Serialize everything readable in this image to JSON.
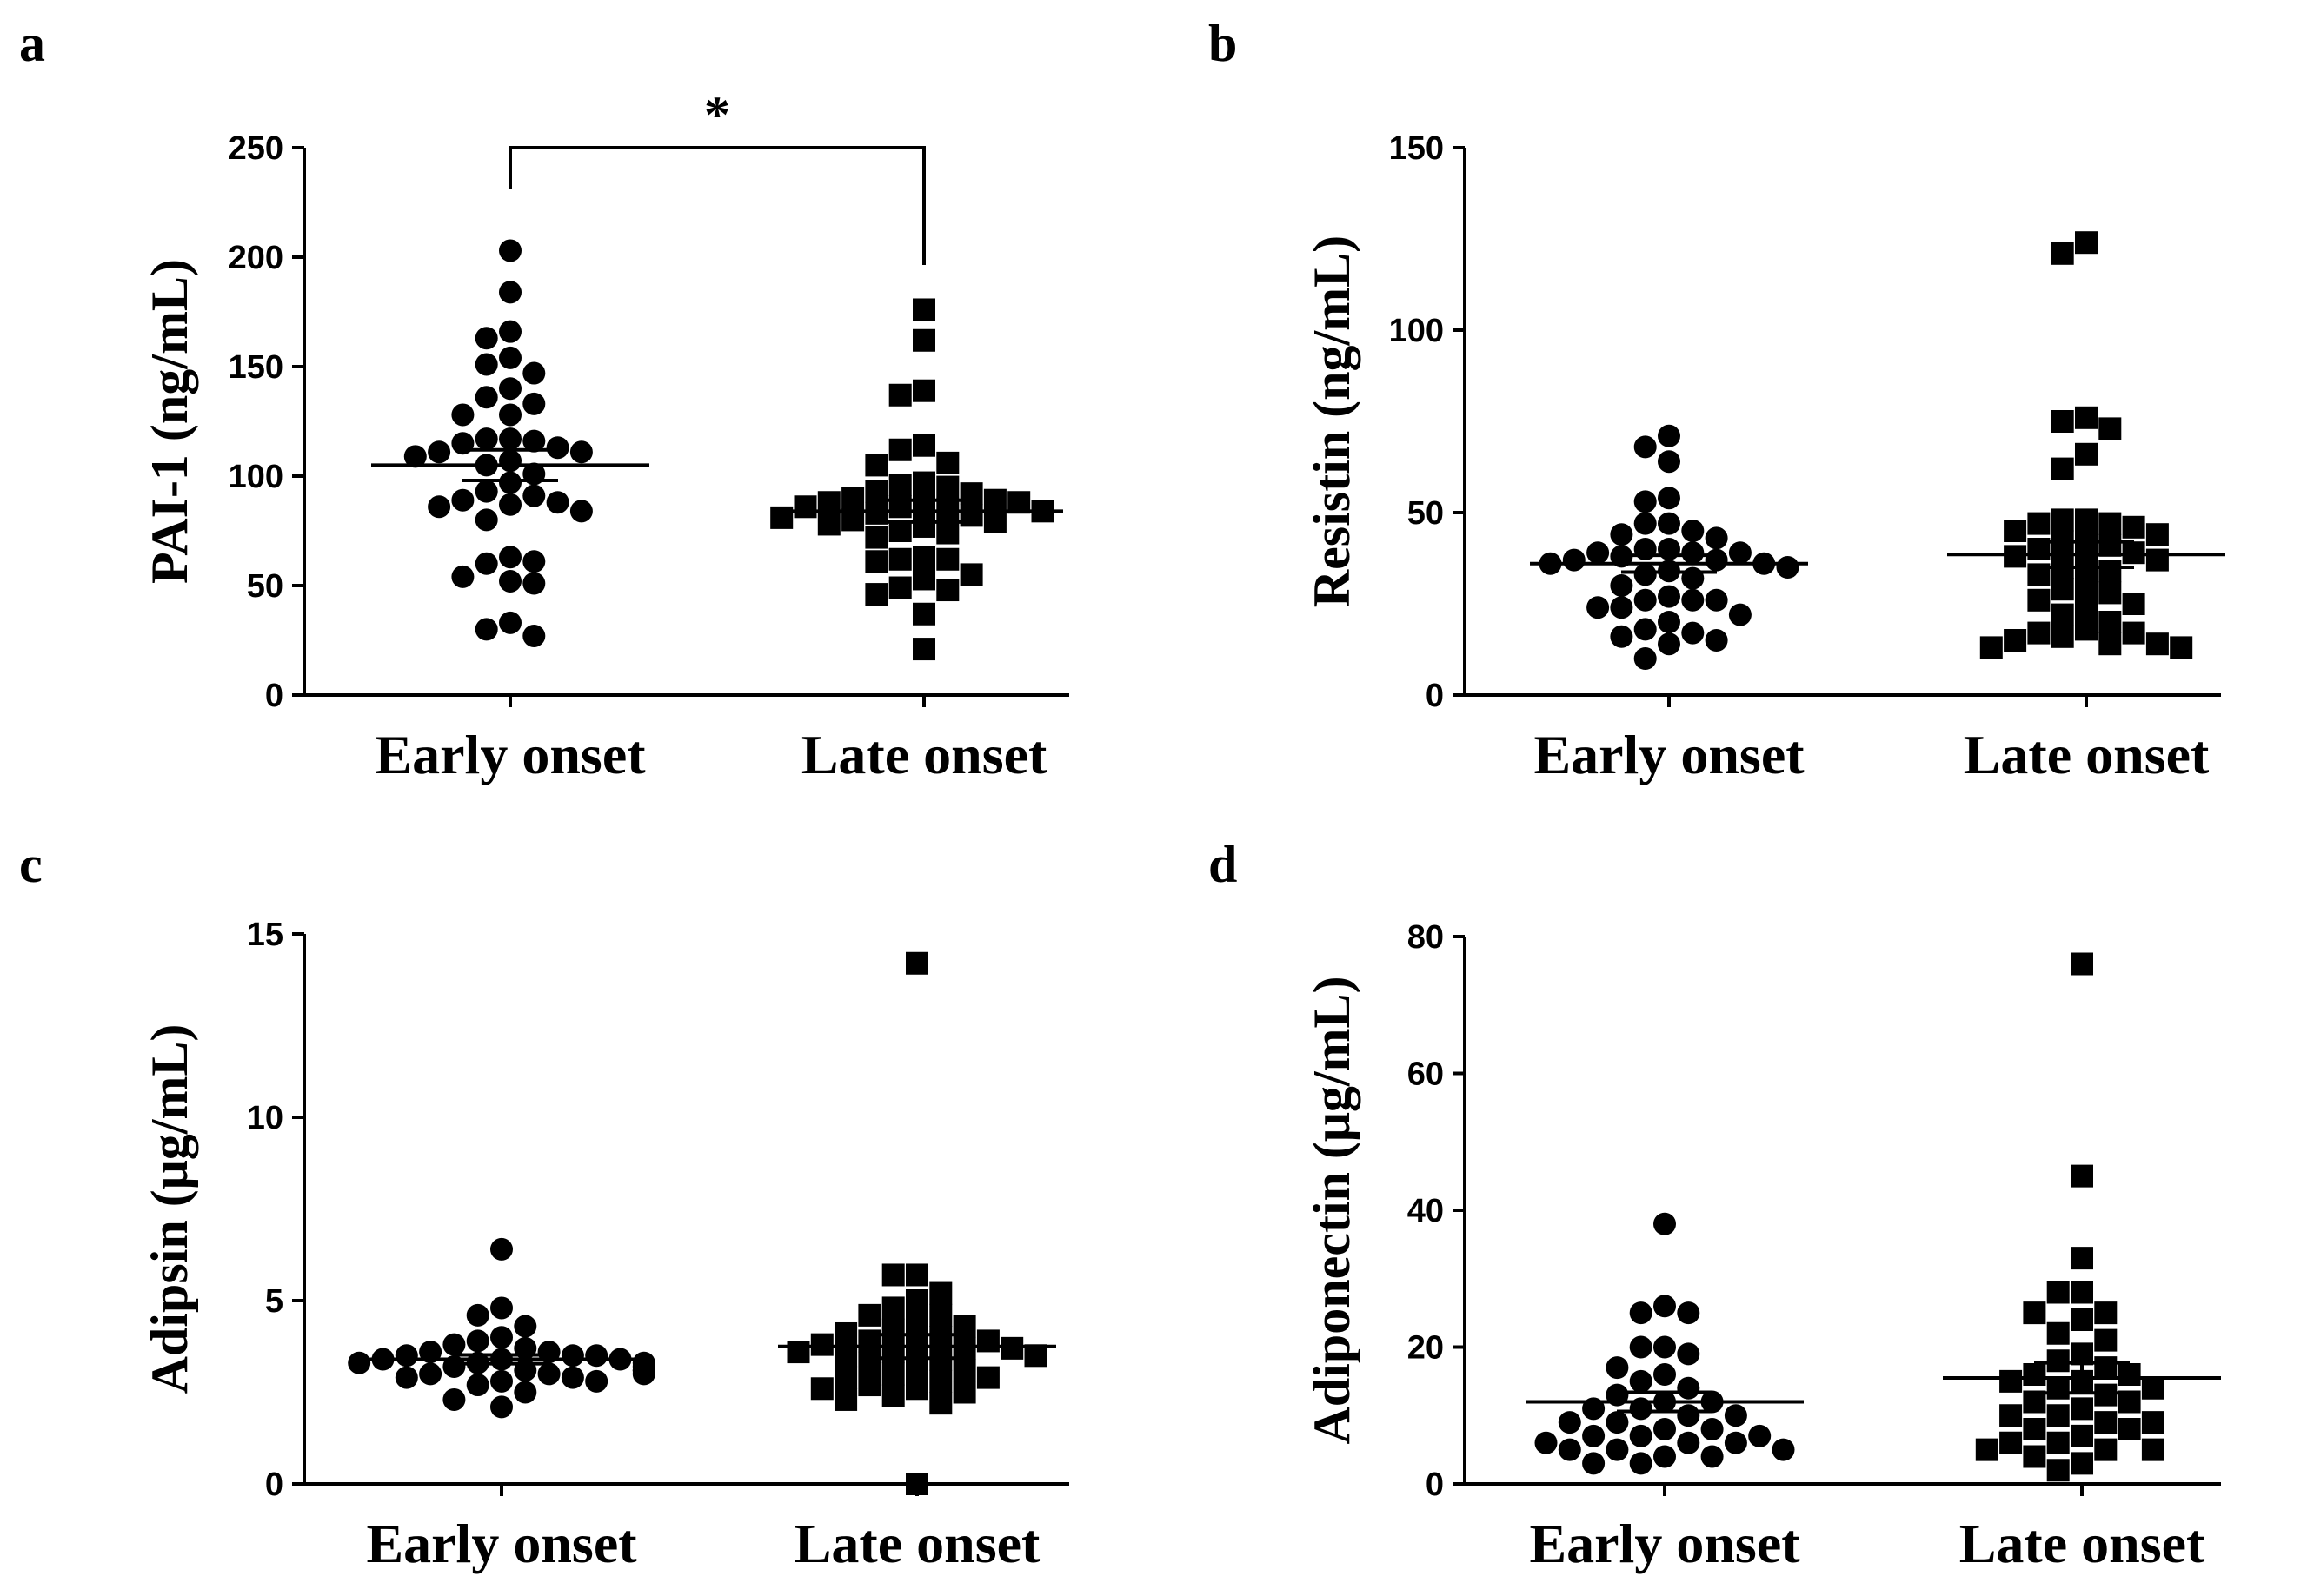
{
  "chart_data": [
    {
      "panel": "a",
      "type": "scatter",
      "ylabel": "PAI-1 (ng/mL)",
      "ylim": [
        0,
        250
      ],
      "yticks": [
        0,
        50,
        100,
        150,
        200,
        250
      ],
      "categories": [
        "Early onset",
        "Late onset"
      ],
      "significance": {
        "label": "*",
        "between": [
          0,
          1
        ]
      },
      "series": [
        {
          "category": "Early onset",
          "marker": "circle",
          "mean": 105,
          "sem": 7,
          "values": [
            203,
            184,
            166,
            163,
            154,
            151,
            147,
            140,
            136,
            133,
            128,
            128,
            117,
            117,
            116,
            115,
            113,
            111,
            111,
            109,
            107,
            105,
            101,
            97,
            93,
            91,
            89,
            88,
            87,
            86,
            84,
            80,
            63,
            60,
            61,
            54,
            52,
            51,
            33,
            30,
            27
          ]
        },
        {
          "category": "Late onset",
          "marker": "square",
          "mean": 84,
          "sem": 5,
          "values": [
            176,
            162,
            139,
            137,
            114,
            112,
            106,
            105,
            97,
            96,
            95,
            93,
            92,
            90,
            89,
            88,
            88,
            87,
            86,
            86,
            85,
            84,
            83,
            82,
            81,
            80,
            79,
            78,
            77,
            75,
            74,
            72,
            63,
            62,
            62,
            61,
            55,
            53,
            49,
            48,
            46,
            37,
            21
          ]
        }
      ]
    },
    {
      "panel": "b",
      "type": "scatter",
      "ylabel": "Resistin (ng/mL)",
      "ylim": [
        0,
        150
      ],
      "yticks": [
        0,
        50,
        100,
        150
      ],
      "categories": [
        "Early onset",
        "Late onset"
      ],
      "series": [
        {
          "category": "Early onset",
          "marker": "circle",
          "mean": 36,
          "sem": 2.3,
          "values": [
            71,
            68,
            64,
            54,
            53,
            47,
            47,
            45,
            44,
            43,
            40,
            40,
            39,
            39,
            39,
            38,
            37,
            37,
            36,
            36,
            35,
            34,
            33,
            32,
            30,
            27,
            26,
            26,
            26,
            24,
            24,
            22,
            20,
            18,
            17,
            16,
            15,
            14,
            10
          ]
        },
        {
          "category": "Late onset",
          "marker": "square",
          "mean": 38.5,
          "sem": 3.5,
          "values": [
            124,
            121,
            76,
            75,
            73,
            66,
            62,
            48,
            48,
            47,
            47,
            46,
            45,
            44,
            42,
            42,
            41,
            40,
            39,
            38,
            37,
            36,
            35,
            34,
            33,
            30,
            29,
            28,
            26,
            25,
            24,
            22,
            20,
            18,
            17,
            17,
            16,
            15,
            14,
            14,
            13,
            13
          ]
        }
      ]
    },
    {
      "panel": "c",
      "type": "scatter",
      "ylabel": "Adipsin (μg/mL)",
      "ylim": [
        0,
        15
      ],
      "yticks": [
        0,
        5,
        10,
        15
      ],
      "categories": [
        "Early onset",
        "Late onset"
      ],
      "series": [
        {
          "category": "Early onset",
          "marker": "circle",
          "mean": 3.4,
          "sem": 0.12,
          "values": [
            6.4,
            4.8,
            4.6,
            4.3,
            4.0,
            3.9,
            3.8,
            3.7,
            3.6,
            3.6,
            3.5,
            3.5,
            3.5,
            3.4,
            3.4,
            3.4,
            3.3,
            3.3,
            3.3,
            3.2,
            3.2,
            3.1,
            3.1,
            3.1,
            3.0,
            3.0,
            3.0,
            2.9,
            2.9,
            2.8,
            2.8,
            2.7,
            2.5,
            2.3,
            2.1
          ]
        },
        {
          "category": "Late onset",
          "marker": "square",
          "mean": 3.75,
          "sem": 0.32,
          "values": [
            14.2,
            5.7,
            5.7,
            5.2,
            5.0,
            4.8,
            4.6,
            4.6,
            4.4,
            4.3,
            4.2,
            4.1,
            4.0,
            3.9,
            3.9,
            3.8,
            3.8,
            3.7,
            3.7,
            3.6,
            3.6,
            3.5,
            3.5,
            3.4,
            3.3,
            3.2,
            3.1,
            3.0,
            2.9,
            2.9,
            2.8,
            2.7,
            2.6,
            2.6,
            2.5,
            2.4,
            2.3,
            2.2,
            0
          ]
        }
      ]
    },
    {
      "panel": "d",
      "type": "scatter",
      "ylabel": "Adiponectin (μg/mL)",
      "ylim": [
        0,
        80
      ],
      "yticks": [
        0,
        20,
        40,
        60,
        80
      ],
      "categories": [
        "Early onset",
        "Late onset"
      ],
      "series": [
        {
          "category": "Early onset",
          "marker": "circle",
          "mean": 12,
          "sem": 1.4,
          "values": [
            38,
            26,
            25,
            25,
            20,
            20,
            19,
            17,
            16,
            15,
            14,
            13,
            12,
            12,
            11,
            11,
            10,
            10,
            9,
            9,
            8,
            8,
            7,
            7,
            7,
            6,
            6,
            6,
            5,
            5,
            5,
            4,
            4,
            3,
            3
          ]
        },
        {
          "category": "Late onset",
          "marker": "square",
          "mean": 15.5,
          "sem": 2.2,
          "values": [
            76,
            45,
            33,
            28,
            28,
            25,
            25,
            24,
            22,
            21,
            19,
            18,
            17,
            16,
            16,
            15,
            15,
            14,
            14,
            13,
            12,
            12,
            11,
            10,
            10,
            9,
            9,
            8,
            8,
            7,
            6,
            6,
            5,
            5,
            5,
            4,
            3,
            2
          ]
        }
      ]
    }
  ]
}
